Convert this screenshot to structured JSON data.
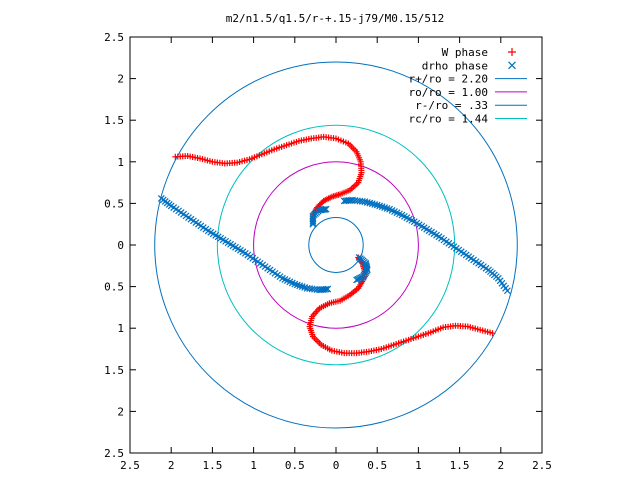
{
  "chart_data": {
    "type": "scatter",
    "title": "m2/n1.5/q1.5/r-+.15-j79/M0.15/512",
    "xlabel": "",
    "ylabel": "",
    "xlim": [
      -2.5,
      2.5
    ],
    "ylim": [
      -2.5,
      2.5
    ],
    "x_ticks": [
      "2.5",
      "2",
      "1.5",
      "1",
      "0.5",
      "0",
      "0.5",
      "1",
      "1.5",
      "2",
      "2.5"
    ],
    "y_ticks": [
      "2.5",
      "2",
      "1.5",
      "1",
      "0.5",
      "0",
      "0.5",
      "1",
      "1.5",
      "2",
      "2.5"
    ],
    "x_tick_values": [
      -2.5,
      -2,
      -1.5,
      -1,
      -0.5,
      0,
      0.5,
      1,
      1.5,
      2,
      2.5
    ],
    "y_tick_values": [
      2.5,
      2,
      1.5,
      1,
      0.5,
      0,
      -0.5,
      -1,
      -1.5,
      -2,
      -2.5
    ],
    "grid": false,
    "legend_position": "top-right",
    "series": [
      {
        "name": "W phase",
        "marker": "plus",
        "color": "#ff0000",
        "curves": [
          [
            [
              -1.95,
              1.06
            ],
            [
              -1.8,
              1.07
            ],
            [
              -1.65,
              1.04
            ],
            [
              -1.5,
              1.0
            ],
            [
              -1.35,
              0.98
            ],
            [
              -1.2,
              0.99
            ],
            [
              -1.05,
              1.03
            ],
            [
              -0.9,
              1.09
            ],
            [
              -0.75,
              1.15
            ],
            [
              -0.6,
              1.2
            ],
            [
              -0.45,
              1.25
            ],
            [
              -0.3,
              1.28
            ],
            [
              -0.15,
              1.3
            ],
            [
              0.0,
              1.28
            ],
            [
              0.15,
              1.22
            ],
            [
              0.25,
              1.12
            ],
            [
              0.3,
              1.0
            ],
            [
              0.31,
              0.87
            ],
            [
              0.27,
              0.75
            ],
            [
              0.17,
              0.66
            ],
            [
              0.05,
              0.61
            ],
            [
              -0.05,
              0.58
            ],
            [
              -0.15,
              0.53
            ],
            [
              -0.23,
              0.45
            ],
            [
              -0.27,
              0.37
            ]
          ],
          [
            [
              1.9,
              -1.06
            ],
            [
              1.75,
              -1.02
            ],
            [
              1.6,
              -0.98
            ],
            [
              1.45,
              -0.97
            ],
            [
              1.3,
              -0.99
            ],
            [
              1.15,
              -1.05
            ],
            [
              1.0,
              -1.1
            ],
            [
              0.85,
              -1.15
            ],
            [
              0.7,
              -1.2
            ],
            [
              0.55,
              -1.25
            ],
            [
              0.4,
              -1.28
            ],
            [
              0.25,
              -1.3
            ],
            [
              0.1,
              -1.3
            ],
            [
              -0.05,
              -1.27
            ],
            [
              -0.18,
              -1.2
            ],
            [
              -0.28,
              -1.1
            ],
            [
              -0.32,
              -0.98
            ],
            [
              -0.29,
              -0.86
            ],
            [
              -0.2,
              -0.76
            ],
            [
              -0.08,
              -0.7
            ],
            [
              0.05,
              -0.67
            ],
            [
              0.17,
              -0.6
            ],
            [
              0.27,
              -0.52
            ],
            [
              0.33,
              -0.42
            ],
            [
              0.35,
              -0.32
            ],
            [
              0.32,
              -0.22
            ],
            [
              0.27,
              -0.15
            ]
          ]
        ]
      },
      {
        "name": "drho phase",
        "marker": "cross",
        "color": "#0070c0",
        "curves": [
          [
            [
              -2.12,
              0.56
            ],
            [
              -2.0,
              0.47
            ],
            [
              -1.85,
              0.37
            ],
            [
              -1.7,
              0.27
            ],
            [
              -1.55,
              0.17
            ],
            [
              -1.4,
              0.08
            ],
            [
              -1.25,
              -0.01
            ],
            [
              -1.1,
              -0.1
            ],
            [
              -0.95,
              -0.2
            ],
            [
              -0.8,
              -0.3
            ],
            [
              -0.65,
              -0.4
            ],
            [
              -0.5,
              -0.47
            ],
            [
              -0.35,
              -0.52
            ],
            [
              -0.2,
              -0.54
            ],
            [
              -0.1,
              -0.53
            ]
          ],
          [
            [
              0.1,
              0.53
            ],
            [
              0.2,
              0.54
            ],
            [
              0.35,
              0.52
            ],
            [
              0.5,
              0.48
            ],
            [
              0.65,
              0.43
            ],
            [
              0.8,
              0.36
            ],
            [
              0.95,
              0.28
            ],
            [
              1.1,
              0.19
            ],
            [
              1.25,
              0.1
            ],
            [
              1.4,
              0.0
            ],
            [
              1.55,
              -0.1
            ],
            [
              1.7,
              -0.2
            ],
            [
              1.85,
              -0.3
            ],
            [
              1.97,
              -0.4
            ],
            [
              2.08,
              -0.55
            ]
          ],
          [
            [
              -0.28,
              0.25
            ],
            [
              -0.28,
              0.35
            ],
            [
              -0.2,
              0.42
            ],
            [
              -0.12,
              0.43
            ]
          ],
          [
            [
              0.28,
              -0.15
            ],
            [
              0.36,
              -0.22
            ],
            [
              0.38,
              -0.3
            ],
            [
              0.33,
              -0.38
            ],
            [
              0.25,
              -0.42
            ]
          ]
        ]
      },
      {
        "name": "r+/ro = 2.20",
        "type": "circle",
        "radius": 2.2,
        "color": "#0070c0"
      },
      {
        "name": "ro/ro = 1.00",
        "type": "circle",
        "radius": 1.0,
        "color": "#c000c0"
      },
      {
        "name": "r-/ro = .33",
        "type": "circle",
        "radius": 0.33,
        "color": "#0070c0"
      },
      {
        "name": "rc/ro = 1.44",
        "type": "circle",
        "radius": 1.44,
        "color": "#00c0c0"
      }
    ]
  }
}
